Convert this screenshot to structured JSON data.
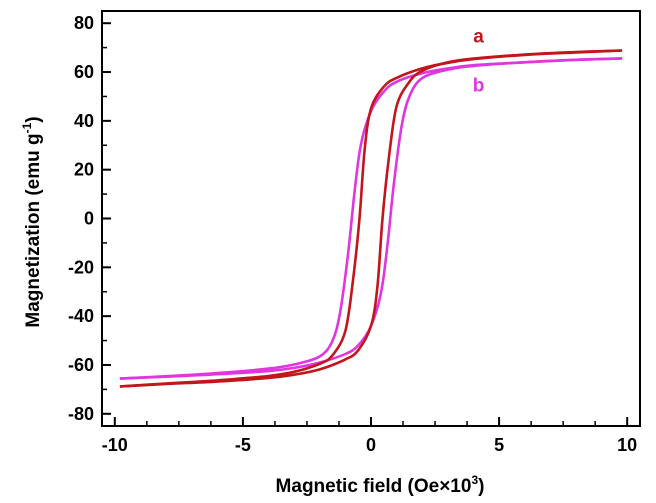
{
  "chart_data": {
    "type": "line",
    "xlabel": {
      "main": "Magnetic field (Oe",
      "times": "×",
      "base": "10",
      "exp": "3",
      "close": ")"
    },
    "ylabel": {
      "main": "Magnetization (emu g",
      "exp": "-1",
      "close": ")"
    },
    "xlim": [
      -10.5,
      10.5
    ],
    "ylim": [
      -85,
      85
    ],
    "xticks": [
      -10,
      -5,
      0,
      5,
      10
    ],
    "yticks": [
      -80,
      -60,
      -40,
      -20,
      0,
      20,
      40,
      60,
      80
    ],
    "grid": false,
    "colors": {
      "a": "#c0161c",
      "b": "#e036e0"
    },
    "series": [
      {
        "name": "a",
        "color": "#c0161c",
        "upper": [
          [
            -9.8,
            -68.8
          ],
          [
            -8,
            -67.6
          ],
          [
            -6,
            -66.3
          ],
          [
            -4,
            -64.5
          ],
          [
            -3,
            -62.8
          ],
          [
            -2,
            -59.5
          ],
          [
            -1.5,
            -56
          ],
          [
            -1,
            -46
          ],
          [
            -0.7,
            -25
          ],
          [
            -0.45,
            0
          ],
          [
            -0.25,
            28
          ],
          [
            0,
            45
          ],
          [
            0.5,
            54
          ],
          [
            1,
            57.6
          ],
          [
            2,
            61.5
          ],
          [
            3,
            63.8
          ],
          [
            4,
            65.3
          ],
          [
            6,
            67
          ],
          [
            8,
            68
          ],
          [
            9.8,
            68.8
          ]
        ],
        "lower": [
          [
            9.8,
            68.8
          ],
          [
            8,
            68.2
          ],
          [
            6,
            67.2
          ],
          [
            4,
            65.5
          ],
          [
            3,
            64
          ],
          [
            2,
            60.5
          ],
          [
            1.5,
            56
          ],
          [
            1,
            46
          ],
          [
            0.7,
            25
          ],
          [
            0.45,
            0
          ],
          [
            0.25,
            -28
          ],
          [
            0,
            -44
          ],
          [
            -0.5,
            -54
          ],
          [
            -1,
            -57.7
          ],
          [
            -2,
            -61.8
          ],
          [
            -3,
            -64
          ],
          [
            -4,
            -65.3
          ],
          [
            -6,
            -66.8
          ],
          [
            -8,
            -67.8
          ],
          [
            -9.8,
            -68.8
          ]
        ]
      },
      {
        "name": "b",
        "color": "#e036e0",
        "upper": [
          [
            -9.8,
            -65.6
          ],
          [
            -8,
            -64.6
          ],
          [
            -6,
            -63.3
          ],
          [
            -4,
            -61.5
          ],
          [
            -3,
            -59.8
          ],
          [
            -2,
            -56.5
          ],
          [
            -1.5,
            -50
          ],
          [
            -1.2,
            -38
          ],
          [
            -0.9,
            -15
          ],
          [
            -0.65,
            10
          ],
          [
            -0.4,
            30
          ],
          [
            0,
            44
          ],
          [
            0.5,
            52
          ],
          [
            1,
            56
          ],
          [
            2,
            59.5
          ],
          [
            3,
            61.5
          ],
          [
            4,
            62.8
          ],
          [
            6,
            64
          ],
          [
            8,
            65
          ],
          [
            9.8,
            65.6
          ]
        ],
        "lower": [
          [
            9.8,
            65.6
          ],
          [
            8,
            65
          ],
          [
            6,
            64
          ],
          [
            4,
            62.5
          ],
          [
            3,
            61
          ],
          [
            2,
            57.5
          ],
          [
            1.5,
            50
          ],
          [
            1.2,
            38
          ],
          [
            0.9,
            15
          ],
          [
            0.65,
            -10
          ],
          [
            0.4,
            -30
          ],
          [
            0,
            -44
          ],
          [
            -0.5,
            -52
          ],
          [
            -1,
            -55.5
          ],
          [
            -2,
            -59
          ],
          [
            -3,
            -61.2
          ],
          [
            -4,
            -62.5
          ],
          [
            -6,
            -63.8
          ],
          [
            -8,
            -64.8
          ],
          [
            -9.8,
            -65.6
          ]
        ]
      }
    ],
    "annotations": [
      {
        "text": "a",
        "x": 4.2,
        "y": 72,
        "color": "#c0161c"
      },
      {
        "text": "b",
        "x": 4.2,
        "y": 52,
        "color": "#e036e0"
      }
    ]
  }
}
